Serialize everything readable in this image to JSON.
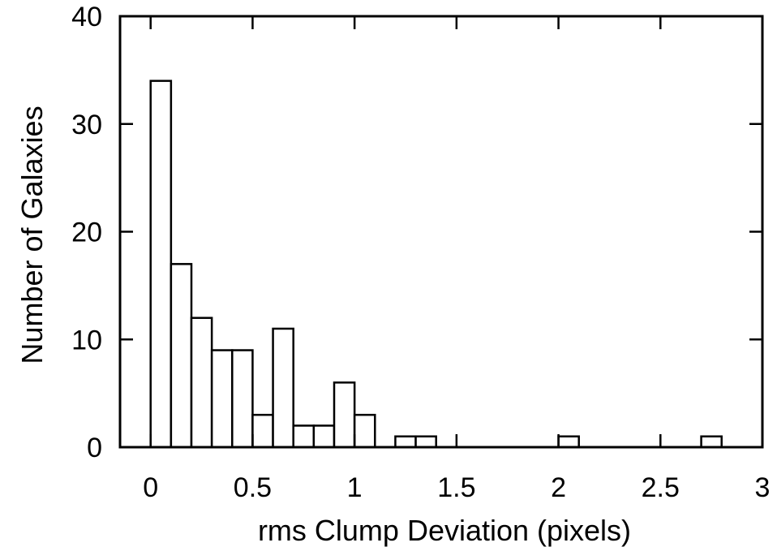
{
  "chart_data": {
    "type": "bar",
    "title": "",
    "xlabel": "rms Clump Deviation (pixels)",
    "ylabel": "Number of Galaxies",
    "xlim": [
      -0.15,
      3
    ],
    "ylim": [
      0,
      40
    ],
    "x_ticks": [
      "0",
      "0.5",
      "1",
      "1.5",
      "2",
      "2.5",
      "3"
    ],
    "y_ticks": [
      "0",
      "10",
      "20",
      "30",
      "40"
    ],
    "bin_width": 0.1,
    "bins": [
      {
        "x0": 0.0,
        "count": 34
      },
      {
        "x0": 0.1,
        "count": 17
      },
      {
        "x0": 0.2,
        "count": 12
      },
      {
        "x0": 0.3,
        "count": 9
      },
      {
        "x0": 0.4,
        "count": 9
      },
      {
        "x0": 0.5,
        "count": 3
      },
      {
        "x0": 0.6,
        "count": 11
      },
      {
        "x0": 0.7,
        "count": 2
      },
      {
        "x0": 0.8,
        "count": 2
      },
      {
        "x0": 0.9,
        "count": 6
      },
      {
        "x0": 1.0,
        "count": 3
      },
      {
        "x0": 1.2,
        "count": 1
      },
      {
        "x0": 1.3,
        "count": 1
      },
      {
        "x0": 2.0,
        "count": 1
      },
      {
        "x0": 2.7,
        "count": 1
      }
    ],
    "grid": false,
    "legend": "none"
  }
}
